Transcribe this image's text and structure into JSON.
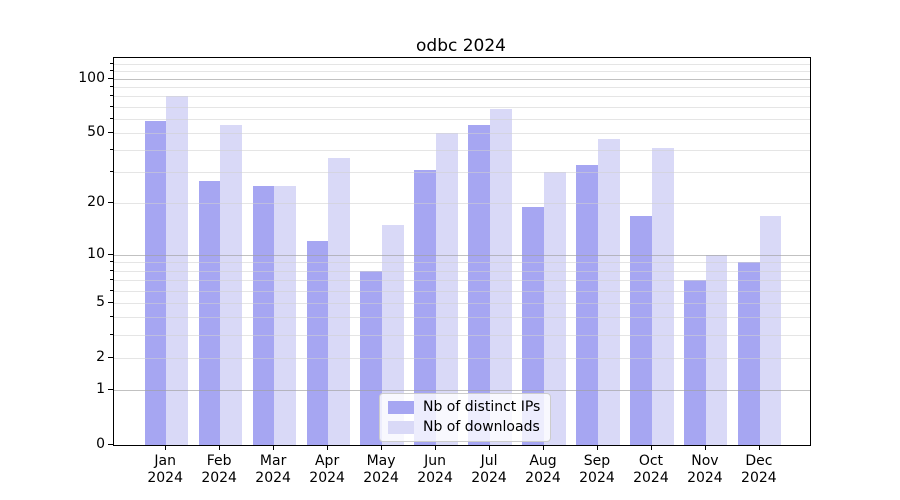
{
  "chart_data": {
    "type": "bar",
    "title": "odbc 2024",
    "categories": [
      "Jan",
      "Feb",
      "Mar",
      "Apr",
      "May",
      "Jun",
      "Jul",
      "Aug",
      "Sep",
      "Oct",
      "Nov",
      "Dec"
    ],
    "category_year": "2024",
    "series": [
      {
        "name": "Nb of distinct IPs",
        "color": "#a6a6f2",
        "values": [
          58,
          27,
          25,
          12,
          8,
          31,
          55,
          19,
          33,
          17,
          7,
          9
        ]
      },
      {
        "name": "Nb of downloads",
        "color": "#d9d9f7",
        "values": [
          80,
          55,
          25,
          36,
          15,
          50,
          68,
          30,
          46,
          41,
          10,
          17
        ]
      }
    ],
    "y_scale": "log1p",
    "y_max": 130,
    "y_tick_labels": [
      100,
      50,
      20,
      10,
      5,
      2,
      1,
      0
    ],
    "major_gridlines": [
      1,
      10,
      100
    ],
    "minor_gridlines": [
      2,
      3,
      4,
      5,
      6,
      7,
      8,
      9,
      20,
      30,
      40,
      50,
      60,
      70,
      80,
      90,
      110,
      120
    ],
    "grid": true,
    "legend_position": "inside-bottom-center",
    "axis_color": "#000000",
    "background_color": "#ffffff"
  }
}
